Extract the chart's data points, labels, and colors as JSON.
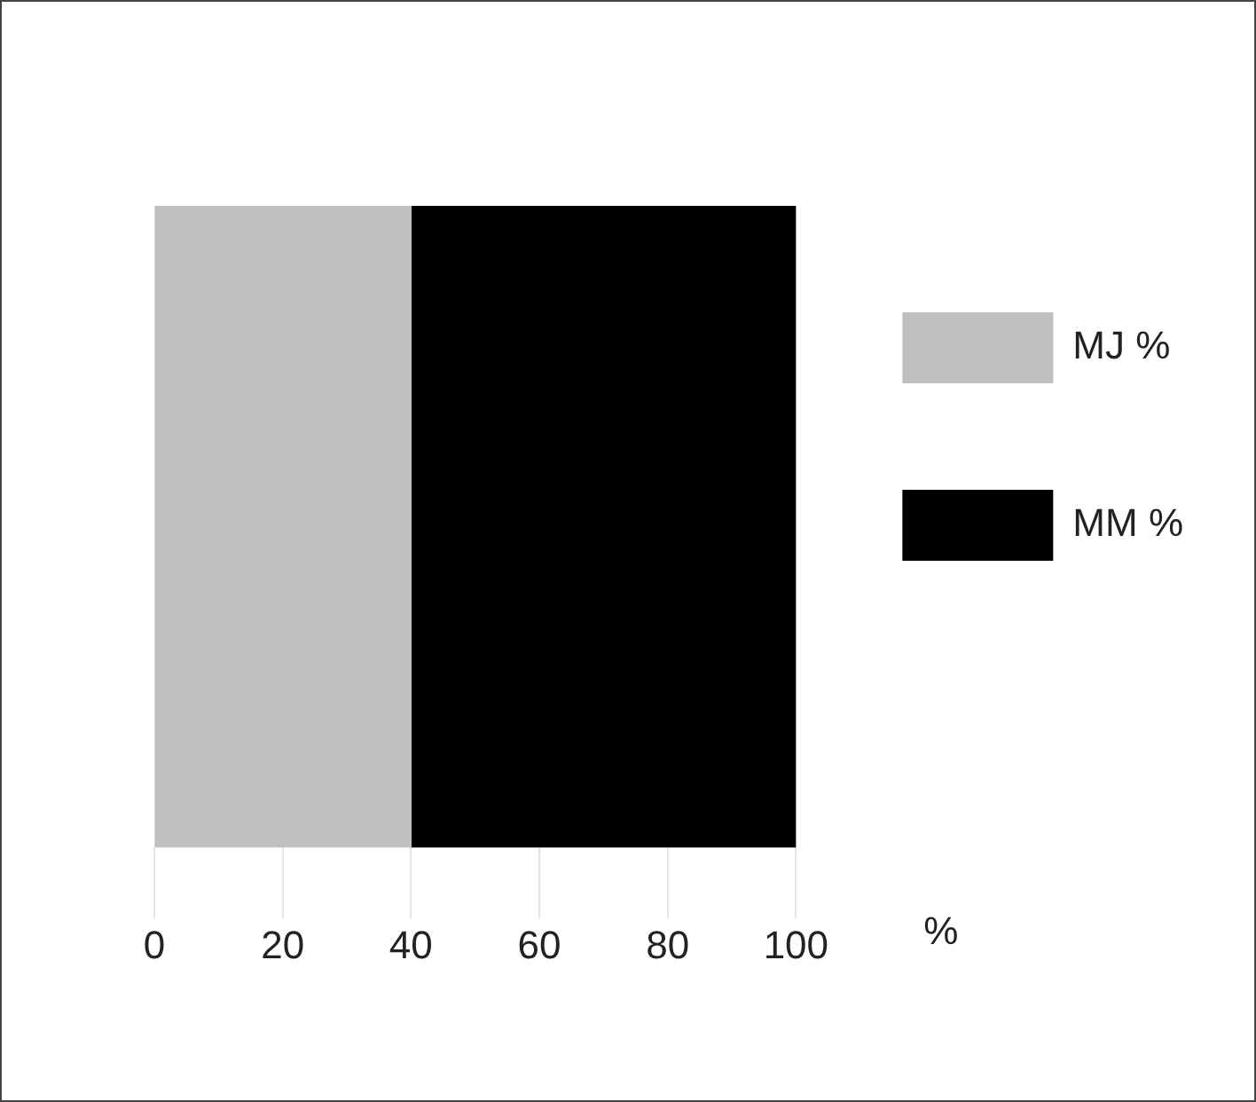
{
  "chart_data": {
    "type": "bar",
    "orientation": "horizontal",
    "stacked": true,
    "categories": [
      null
    ],
    "xlabel": "%",
    "series": [
      {
        "name": "MJ %",
        "color": "#c0c0c0",
        "values": [
          40
        ]
      },
      {
        "name": "MM %",
        "color": "#000000",
        "values": [
          60
        ]
      }
    ],
    "xlim": [
      0,
      100
    ],
    "xticks": [
      0,
      20,
      40,
      60,
      80,
      100
    ],
    "legend": "right"
  }
}
